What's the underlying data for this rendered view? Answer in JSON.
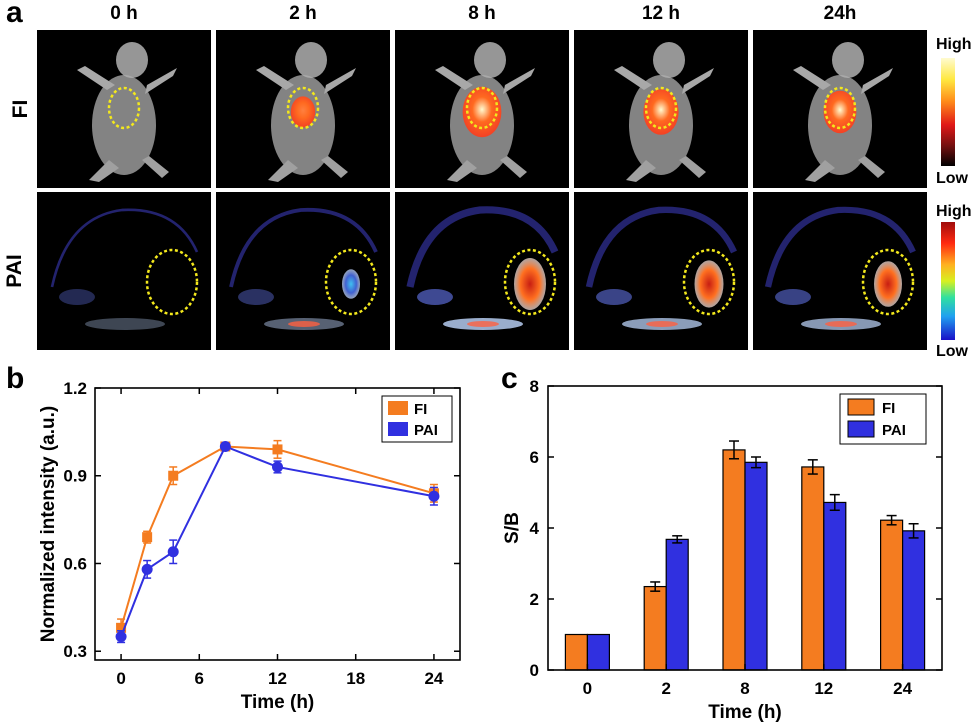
{
  "panel_a": {
    "letter": "a",
    "time_points": [
      "0 h",
      "2 h",
      "8 h",
      "12 h",
      "24h"
    ],
    "rows": [
      {
        "label": "FI",
        "colorbar_high": "High",
        "colorbar_low": "Low",
        "intensity": [
          0.05,
          0.35,
          0.95,
          0.8,
          0.7
        ]
      },
      {
        "label": "PAI",
        "colorbar_high": "High",
        "colorbar_low": "Low",
        "intensity": [
          0.05,
          0.3,
          1.0,
          0.85,
          0.8
        ]
      }
    ],
    "colors": {
      "roi": "#f3e81c",
      "fi_high": "#fffbd0",
      "fi_mid": "#ff3a1a",
      "pai_high": "#c81e12",
      "pai_low": "#1a10c8"
    }
  },
  "chart_data": [
    {
      "panel": "b",
      "type": "line",
      "title": "",
      "xlabel": "Time (h)",
      "ylabel": "Normalized intensity (a.u.)",
      "xlim": [
        -2,
        26
      ],
      "ylim": [
        0.27,
        1.2
      ],
      "xticks": [
        0,
        6,
        12,
        18,
        24
      ],
      "yticks": [
        0.3,
        0.6,
        0.9,
        1.2
      ],
      "ytick_labels": [
        "0.3",
        "0.6",
        "0.9",
        "1.2"
      ],
      "legend_position": "top-right",
      "series": [
        {
          "name": "FI",
          "color": "#f47c20",
          "marker": "square",
          "x": [
            0,
            2,
            4,
            8,
            12,
            24
          ],
          "y": [
            0.38,
            0.69,
            0.9,
            1.0,
            0.99,
            0.84
          ],
          "err": [
            0.03,
            0.02,
            0.03,
            0.01,
            0.03,
            0.03
          ]
        },
        {
          "name": "PAI",
          "color": "#3030e0",
          "marker": "circle",
          "x": [
            0,
            2,
            4,
            8,
            12,
            24
          ],
          "y": [
            0.35,
            0.58,
            0.64,
            1.0,
            0.93,
            0.83
          ],
          "err": [
            0.02,
            0.03,
            0.04,
            0.01,
            0.02,
            0.03
          ]
        }
      ]
    },
    {
      "panel": "c",
      "type": "bar",
      "title": "",
      "xlabel": "Time (h)",
      "ylabel": "S/B",
      "categories": [
        "0",
        "2",
        "8",
        "12",
        "24"
      ],
      "ylim": [
        0,
        8
      ],
      "yticks": [
        0,
        2,
        4,
        6,
        8
      ],
      "legend_position": "top-right",
      "series": [
        {
          "name": "FI",
          "color": "#f47c20",
          "values": [
            1.0,
            2.35,
            6.2,
            5.72,
            4.22
          ],
          "err": [
            0,
            0.13,
            0.25,
            0.2,
            0.13
          ]
        },
        {
          "name": "PAI",
          "color": "#3030e0",
          "values": [
            1.0,
            3.68,
            5.85,
            4.72,
            3.92
          ],
          "err": [
            0,
            0.1,
            0.15,
            0.22,
            0.2
          ]
        }
      ]
    }
  ]
}
